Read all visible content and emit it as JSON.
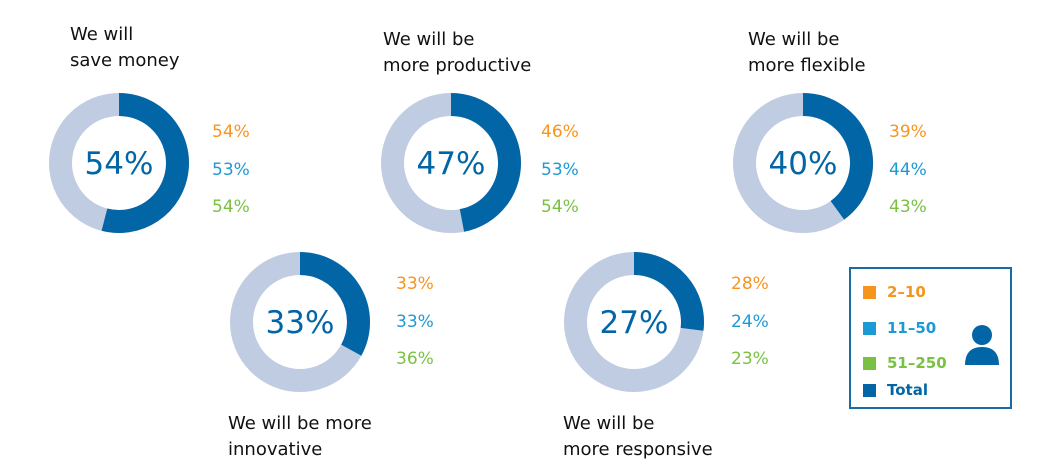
{
  "chart_data": {
    "type": "donut",
    "series_names": [
      "2–10",
      "11–50",
      "51–250",
      "Total"
    ],
    "colors": {
      "2–10": "#f7941d",
      "11–50": "#1c9ad6",
      "51–250": "#7ac143",
      "Total": "#0266a6",
      "remainder": "#bfcce1"
    },
    "charts": [
      {
        "title": "We will\nsave money",
        "total": 54,
        "total_label": "54%",
        "segments": [
          "54%",
          "53%",
          "54%"
        ]
      },
      {
        "title": "We will be\nmore productive",
        "total": 47,
        "total_label": "47%",
        "segments": [
          "46%",
          "53%",
          "54%"
        ]
      },
      {
        "title": "We will be\nmore flexible",
        "total": 40,
        "total_label": "40%",
        "segments": [
          "39%",
          "44%",
          "43%"
        ]
      },
      {
        "title": "We will be more\ninnovative",
        "total": 33,
        "total_label": "33%",
        "segments": [
          "33%",
          "33%",
          "36%"
        ]
      },
      {
        "title": "We will be\nmore responsive",
        "total": 27,
        "total_label": "27%",
        "segments": [
          "28%",
          "24%",
          "23%"
        ]
      }
    ],
    "legend": {
      "placement": "bottom-right",
      "icon": "person-icon",
      "items": [
        "2–10",
        "11–50",
        "51–250",
        "Total"
      ]
    }
  }
}
